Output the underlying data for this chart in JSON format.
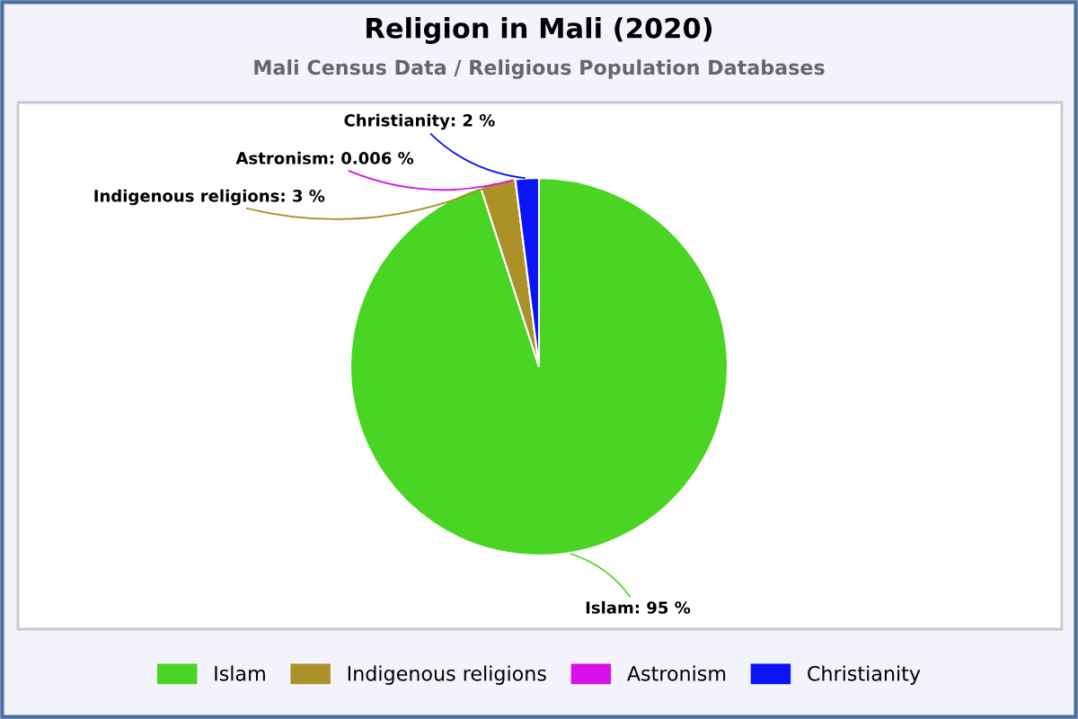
{
  "chart_data": {
    "type": "pie",
    "title": "Religion in Mali (2020)",
    "subtitle": "Mali Census Data / Religious Population Databases",
    "categories": [
      "Islam",
      "Indigenous religions",
      "Astronism",
      "Christianity"
    ],
    "values": [
      95,
      3,
      0.006,
      2
    ],
    "colors": [
      "#4ad424",
      "#ab9128",
      "#d911e8",
      "#0a14f5"
    ],
    "value_labels": [
      "Islam: 95 %",
      "Indigenous religions: 3 %",
      "Astronism: 0.006 %",
      "Christianity: 2 %"
    ],
    "legend": "bottom"
  }
}
